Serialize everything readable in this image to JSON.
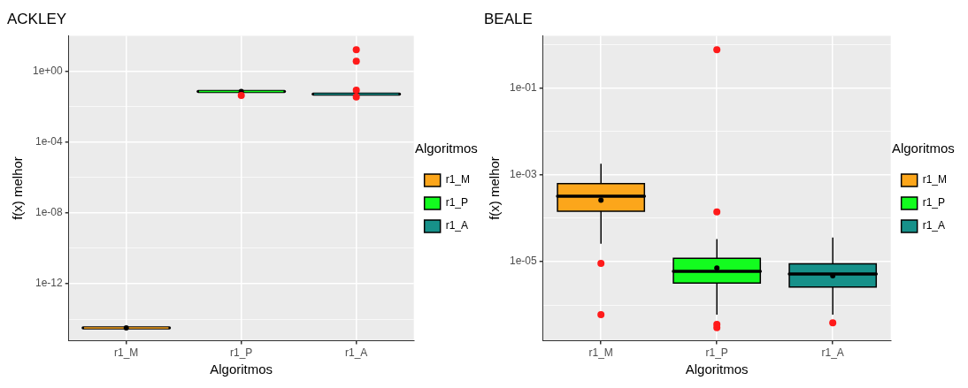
{
  "chart_data": [
    {
      "type": "box",
      "title": "ACKLEY",
      "xlabel": "Algoritmos",
      "ylabel": "f(x) melhor",
      "legend_title": "Algoritmos",
      "legend": "right",
      "grid": true,
      "log": "y",
      "categories": [
        "r1_M",
        "r1_P",
        "r1_A"
      ],
      "ylim": [
        6e-16,
        100
      ],
      "yticks": [
        {
          "value": 1e-14,
          "label": null
        },
        {
          "value": 1e-12,
          "label": "1e-12"
        },
        {
          "value": 1e-10,
          "label": null
        },
        {
          "value": 1e-08,
          "label": "1e-08"
        },
        {
          "value": 1e-06,
          "label": null
        },
        {
          "value": 0.0001,
          "label": "1e-04"
        },
        {
          "value": 0.01,
          "label": null
        },
        {
          "value": 1,
          "label": "1e+00"
        }
      ],
      "series": [
        {
          "name": "r1_M",
          "color": "#fca61b",
          "boxes": [
            {
              "low": 3.2e-15,
              "q1": 3.2e-15,
              "median": 3.2e-15,
              "q3": 3.2e-15,
              "high": 3.2e-15,
              "mean": 3.2e-15
            },
            null,
            null
          ]
        },
        {
          "name": "r1_P",
          "color": "#13fc1f",
          "boxes": [
            null,
            {
              "low": 0.072,
              "q1": 0.072,
              "median": 0.072,
              "q3": 0.072,
              "high": 0.072,
              "mean": 0.072,
              "outliers": [
                0.043
              ]
            },
            null
          ]
        },
        {
          "name": "r1_A",
          "color": "#17918a",
          "boxes": [
            null,
            null,
            {
              "low": 0.05,
              "q1": 0.05,
              "median": 0.05,
              "q3": 0.05,
              "high": 0.05,
              "mean": 0.066,
              "outliers": [
                16,
                3.6,
                0.085,
                0.035
              ]
            }
          ]
        }
      ]
    },
    {
      "type": "box",
      "title": "BEALE",
      "xlabel": "Algoritmos",
      "ylabel": "f(x) melhor",
      "legend_title": "Algoritmos",
      "legend": "right",
      "grid": true,
      "log": "y",
      "categories": [
        "r1_M",
        "r1_P",
        "r1_A"
      ],
      "ylim": [
        1.5e-07,
        1.6
      ],
      "yticks": [
        {
          "value": 1e-06,
          "label": null
        },
        {
          "value": 1e-05,
          "label": "1e-05"
        },
        {
          "value": 0.0001,
          "label": null
        },
        {
          "value": 0.001,
          "label": "1e-03"
        },
        {
          "value": 0.01,
          "label": null
        },
        {
          "value": 0.1,
          "label": "1e-01"
        },
        {
          "value": 1,
          "label": null
        }
      ],
      "series": [
        {
          "name": "r1_M",
          "color": "#fca61b",
          "boxes": [
            {
              "low": 2.6e-05,
              "q1": 0.000145,
              "median": 0.00032,
              "q3": 0.00063,
              "high": 0.0018,
              "mean": 0.00026,
              "outliers": [
                9.1e-06,
                6e-07
              ]
            },
            null,
            null
          ]
        },
        {
          "name": "r1_P",
          "color": "#13fc1f",
          "boxes": [
            null,
            {
              "low": 6e-07,
              "q1": 3.2e-06,
              "median": 6e-06,
              "q3": 1.2e-05,
              "high": 3.3e-05,
              "mean": 7.1e-06,
              "outliers": [
                0.76,
                0.00014,
                3.6e-07,
                3e-07
              ]
            },
            null
          ]
        },
        {
          "name": "r1_A",
          "color": "#17918a",
          "boxes": [
            null,
            null,
            {
              "low": 6e-07,
              "q1": 2.6e-06,
              "median": 5.2e-06,
              "q3": 8.9e-06,
              "high": 3.6e-05,
              "mean": 4.7e-06,
              "outliers": [
                3.9e-07
              ]
            }
          ]
        }
      ]
    }
  ]
}
